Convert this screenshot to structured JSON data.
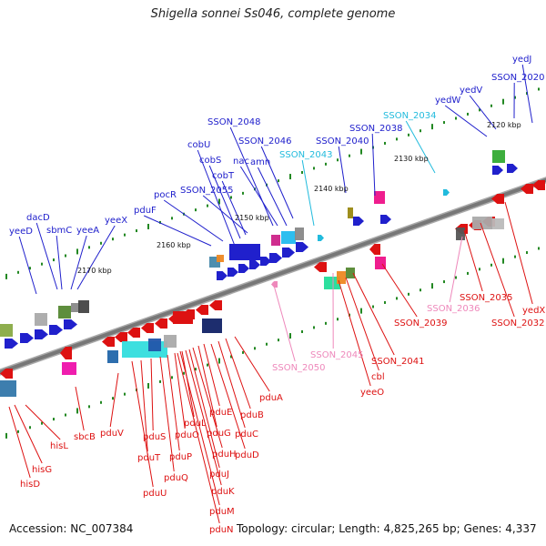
{
  "title": "Shigella sonnei Ss046, complete genome",
  "footer": {
    "accession": "Accession: NC_007384",
    "summary": "Topology: circular; Length: 4,825,265 bp; Genes: 4,337"
  },
  "colors": {
    "ref_blue": "#2020cc",
    "ref_cyan": "#22bbdd",
    "ref_red": "#dd1111",
    "ref_pink": "#ee88bb",
    "backbone": "#777777",
    "tick": "#228822"
  },
  "scale_labels": [
    "2120 kbp",
    "2130 kbp",
    "2140 kbp",
    "2150 kbp",
    "2160 kbp",
    "2170 kbp"
  ],
  "upper_labels": [
    {
      "text": "yedJ",
      "color": "#2020cc"
    },
    {
      "text": "SSON_2020",
      "color": "#2020cc"
    },
    {
      "text": "yedV",
      "color": "#2020cc"
    },
    {
      "text": "yedW",
      "color": "#2020cc"
    },
    {
      "text": "SSON_2034",
      "color": "#22bbdd"
    },
    {
      "text": "SSON_2038",
      "color": "#2020cc"
    },
    {
      "text": "SSON_2040",
      "color": "#2020cc"
    },
    {
      "text": "SSON_2043",
      "color": "#22bbdd"
    },
    {
      "text": "SSON_2046",
      "color": "#2020cc"
    },
    {
      "text": "SSON_2048",
      "color": "#2020cc"
    },
    {
      "text": "nac",
      "color": "#2020cc"
    },
    {
      "text": "amn",
      "color": "#2020cc"
    },
    {
      "text": "cobU",
      "color": "#2020cc"
    },
    {
      "text": "cobS",
      "color": "#2020cc"
    },
    {
      "text": "cobT",
      "color": "#2020cc"
    },
    {
      "text": "SSON_2055",
      "color": "#2020cc"
    },
    {
      "text": "pocR",
      "color": "#2020cc"
    },
    {
      "text": "pduF",
      "color": "#2020cc"
    },
    {
      "text": "yeeX",
      "color": "#2020cc"
    },
    {
      "text": "yeeA",
      "color": "#2020cc"
    },
    {
      "text": "sbmC",
      "color": "#2020cc"
    },
    {
      "text": "dacD",
      "color": "#2020cc"
    },
    {
      "text": "yeeD",
      "color": "#2020cc"
    }
  ],
  "lower_labels": [
    {
      "text": "yedX",
      "color": "#dd1111"
    },
    {
      "text": "SSON_2032",
      "color": "#dd1111"
    },
    {
      "text": "SSON_2035",
      "color": "#dd1111"
    },
    {
      "text": "SSON_2036",
      "color": "#ee88bb"
    },
    {
      "text": "SSON_2039",
      "color": "#dd1111"
    },
    {
      "text": "SSON_2041",
      "color": "#dd1111"
    },
    {
      "text": "cbl",
      "color": "#dd1111"
    },
    {
      "text": "yeeO",
      "color": "#dd1111"
    },
    {
      "text": "SSON_2045",
      "color": "#ee88bb"
    },
    {
      "text": "SSON_2050",
      "color": "#ee88bb"
    },
    {
      "text": "pduA",
      "color": "#dd1111"
    },
    {
      "text": "pduB",
      "color": "#dd1111"
    },
    {
      "text": "pduC",
      "color": "#dd1111"
    },
    {
      "text": "pduD",
      "color": "#dd1111"
    },
    {
      "text": "pduE",
      "color": "#dd1111"
    },
    {
      "text": "pduG",
      "color": "#dd1111"
    },
    {
      "text": "pduH",
      "color": "#dd1111"
    },
    {
      "text": "pduJ",
      "color": "#dd1111"
    },
    {
      "text": "pduK",
      "color": "#dd1111"
    },
    {
      "text": "pduL",
      "color": "#dd1111"
    },
    {
      "text": "pduM",
      "color": "#dd1111"
    },
    {
      "text": "pduN",
      "color": "#dd1111"
    },
    {
      "text": "pduO",
      "color": "#dd1111"
    },
    {
      "text": "pduP",
      "color": "#dd1111"
    },
    {
      "text": "pduQ",
      "color": "#dd1111"
    },
    {
      "text": "pduS",
      "color": "#dd1111"
    },
    {
      "text": "pduT",
      "color": "#dd1111"
    },
    {
      "text": "pduU",
      "color": "#dd1111"
    },
    {
      "text": "pduV",
      "color": "#dd1111"
    },
    {
      "text": "sbcB",
      "color": "#dd1111"
    },
    {
      "text": "hisL",
      "color": "#dd1111"
    },
    {
      "text": "hisG",
      "color": "#dd1111"
    },
    {
      "text": "hisD",
      "color": "#dd1111"
    }
  ]
}
